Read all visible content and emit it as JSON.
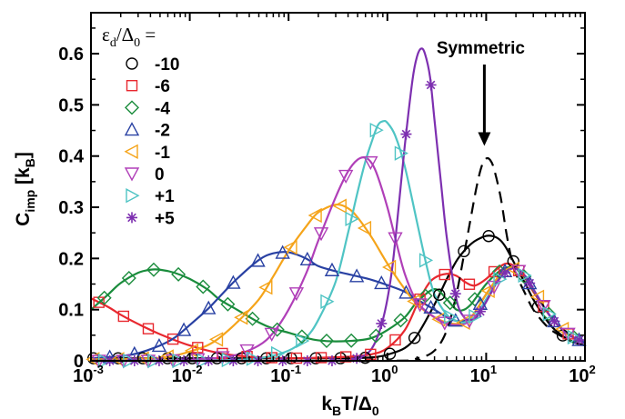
{
  "chart_data": {
    "type": "line",
    "xscale": "log",
    "xlim": [
      0.001,
      100
    ],
    "ylim": [
      0,
      0.68
    ],
    "xlabel": {
      "main": "k",
      "sub1": "B",
      "mid": "T/Δ",
      "sub2": "0"
    },
    "ylabel": {
      "main": "C",
      "sub1": "imp",
      "mid": " [k",
      "sub2": "B",
      "end": "]"
    },
    "xticks": [
      {
        "value": 0.001,
        "base": "10",
        "exp": "-3"
      },
      {
        "value": 0.01,
        "base": "10",
        "exp": "-2"
      },
      {
        "value": 0.1,
        "base": "10",
        "exp": "-1"
      },
      {
        "value": 1,
        "base": "10",
        "exp": "0"
      },
      {
        "value": 10,
        "base": "10",
        "exp": "1"
      },
      {
        "value": 100,
        "base": "10",
        "exp": "2"
      }
    ],
    "yticks": [
      {
        "value": 0,
        "label": "0"
      },
      {
        "value": 0.1,
        "label": "0.1"
      },
      {
        "value": 0.2,
        "label": "0.2"
      },
      {
        "value": 0.3,
        "label": "0.3"
      },
      {
        "value": 0.4,
        "label": "0.4"
      },
      {
        "value": 0.5,
        "label": "0.5"
      },
      {
        "value": 0.6,
        "label": "0.6"
      }
    ],
    "legend_title": {
      "eps": "ε",
      "sub1": "d",
      "mid": "/Δ",
      "sub2": "0",
      "end": " ="
    },
    "legend_position": "top-left",
    "series": [
      {
        "name": "-10",
        "color": "#000000",
        "marker": "circle",
        "x": [
          0.001,
          0.0017,
          0.003,
          0.006,
          0.01,
          0.02,
          0.05,
          0.1,
          0.3,
          0.6,
          0.8,
          1.0,
          1.5,
          2.0,
          3.0,
          4.0,
          5.0,
          6.0,
          7.0,
          8.0,
          10.0,
          12.0,
          14.0,
          16.0,
          20.0,
          25.0,
          30.0,
          40.0,
          50.0,
          70.0,
          100.0
        ],
        "y": [
          0.005,
          0.005,
          0.005,
          0.005,
          0.005,
          0.005,
          0.005,
          0.005,
          0.005,
          0.006,
          0.008,
          0.012,
          0.025,
          0.05,
          0.11,
          0.16,
          0.195,
          0.215,
          0.228,
          0.236,
          0.244,
          0.243,
          0.235,
          0.22,
          0.185,
          0.15,
          0.12,
          0.082,
          0.06,
          0.04,
          0.03
        ]
      },
      {
        "name": "-6",
        "color": "#e8282f",
        "marker": "square",
        "x": [
          0.001,
          0.0015,
          0.002,
          0.003,
          0.005,
          0.01,
          0.02,
          0.04,
          0.07,
          0.1,
          0.2,
          0.4,
          0.7,
          1.0,
          1.5,
          2.0,
          2.5,
          3.0,
          4.0,
          5.0,
          6.0,
          7.0,
          8.0,
          10.0,
          13.0,
          16.0,
          20.0,
          25.0,
          30.0,
          40.0,
          50.0,
          70.0,
          100.0
        ],
        "y": [
          0.122,
          0.105,
          0.09,
          0.072,
          0.052,
          0.03,
          0.015,
          0.008,
          0.006,
          0.005,
          0.006,
          0.008,
          0.013,
          0.025,
          0.06,
          0.11,
          0.145,
          0.162,
          0.17,
          0.166,
          0.155,
          0.148,
          0.148,
          0.16,
          0.18,
          0.19,
          0.183,
          0.16,
          0.135,
          0.1,
          0.075,
          0.05,
          0.035
        ]
      },
      {
        "name": "-4",
        "color": "#1a8c3c",
        "marker": "diamond",
        "x": [
          0.001,
          0.0015,
          0.002,
          0.003,
          0.004,
          0.005,
          0.007,
          0.01,
          0.015,
          0.02,
          0.03,
          0.05,
          0.07,
          0.1,
          0.15,
          0.2,
          0.3,
          0.5,
          0.7,
          1.0,
          1.5,
          2.0,
          3.0,
          4.0,
          5.0,
          6.0,
          7.0,
          8.0,
          10.0,
          13.0,
          16.0,
          20.0,
          25.0,
          30.0,
          40.0,
          50.0,
          70.0,
          100.0
        ],
        "y": [
          0.1,
          0.13,
          0.152,
          0.172,
          0.178,
          0.178,
          0.172,
          0.16,
          0.14,
          0.12,
          0.1,
          0.075,
          0.063,
          0.055,
          0.045,
          0.04,
          0.038,
          0.04,
          0.045,
          0.06,
          0.085,
          0.115,
          0.14,
          0.12,
          0.1,
          0.1,
          0.11,
          0.125,
          0.15,
          0.172,
          0.182,
          0.18,
          0.162,
          0.138,
          0.1,
          0.075,
          0.05,
          0.035
        ]
      },
      {
        "name": "-2",
        "color": "#2941a3",
        "marker": "triangle-up",
        "x": [
          0.001,
          0.0015,
          0.002,
          0.003,
          0.005,
          0.007,
          0.01,
          0.015,
          0.02,
          0.03,
          0.05,
          0.07,
          0.1,
          0.15,
          0.2,
          0.3,
          0.5,
          0.7,
          1.0,
          1.5,
          2.0,
          3.0,
          4.0,
          5.0,
          6.0,
          7.0,
          8.0,
          10.0,
          13.0,
          16.0,
          20.0,
          25.0,
          30.0,
          40.0,
          50.0,
          70.0,
          100.0
        ],
        "y": [
          0.005,
          0.007,
          0.009,
          0.015,
          0.03,
          0.045,
          0.07,
          0.1,
          0.125,
          0.16,
          0.197,
          0.21,
          0.212,
          0.2,
          0.185,
          0.175,
          0.165,
          0.158,
          0.148,
          0.135,
          0.12,
          0.1,
          0.085,
          0.078,
          0.078,
          0.085,
          0.1,
          0.13,
          0.16,
          0.178,
          0.18,
          0.165,
          0.14,
          0.1,
          0.075,
          0.05,
          0.035
        ]
      },
      {
        "name": "-1",
        "color": "#f5a41a",
        "marker": "triangle-left",
        "x": [
          0.001,
          0.002,
          0.003,
          0.005,
          0.007,
          0.01,
          0.015,
          0.02,
          0.03,
          0.05,
          0.07,
          0.1,
          0.15,
          0.2,
          0.3,
          0.4,
          0.5,
          0.7,
          1.0,
          1.5,
          2.0,
          3.0,
          4.0,
          5.0,
          6.0,
          7.0,
          8.0,
          10.0,
          13.0,
          16.0,
          20.0,
          25.0,
          30.0,
          40.0,
          50.0,
          70.0,
          100.0
        ],
        "y": [
          0.003,
          0.003,
          0.004,
          0.006,
          0.01,
          0.018,
          0.03,
          0.045,
          0.075,
          0.12,
          0.165,
          0.215,
          0.262,
          0.29,
          0.305,
          0.298,
          0.28,
          0.24,
          0.19,
          0.14,
          0.11,
          0.085,
          0.075,
          0.072,
          0.075,
          0.085,
          0.1,
          0.13,
          0.162,
          0.178,
          0.18,
          0.165,
          0.14,
          0.1,
          0.075,
          0.05,
          0.035
        ]
      },
      {
        "name": "0",
        "color": "#b03fb8",
        "marker": "triangle-down",
        "x": [
          0.001,
          0.005,
          0.01,
          0.02,
          0.03,
          0.05,
          0.07,
          0.1,
          0.15,
          0.2,
          0.3,
          0.4,
          0.5,
          0.6,
          0.7,
          0.8,
          1.0,
          1.2,
          1.5,
          2.0,
          3.0,
          4.0,
          5.0,
          6.0,
          7.0,
          8.0,
          10.0,
          13.0,
          16.0,
          20.0,
          25.0,
          30.0,
          40.0,
          50.0,
          70.0,
          100.0
        ],
        "y": [
          0.0,
          0.0,
          0.002,
          0.006,
          0.012,
          0.03,
          0.055,
          0.1,
          0.17,
          0.235,
          0.32,
          0.37,
          0.393,
          0.397,
          0.385,
          0.36,
          0.3,
          0.24,
          0.17,
          0.115,
          0.085,
          0.072,
          0.07,
          0.072,
          0.08,
          0.09,
          0.12,
          0.155,
          0.175,
          0.18,
          0.165,
          0.14,
          0.1,
          0.075,
          0.05,
          0.035
        ]
      },
      {
        "name": "+1",
        "color": "#4fc4c4",
        "marker": "triangle-right",
        "x": [
          0.001,
          0.01,
          0.02,
          0.05,
          0.1,
          0.15,
          0.2,
          0.3,
          0.4,
          0.5,
          0.6,
          0.7,
          0.8,
          0.9,
          1.0,
          1.2,
          1.5,
          2.0,
          2.5,
          3.0,
          4.0,
          5.0,
          6.0,
          7.0,
          8.0,
          10.0,
          13.0,
          16.0,
          20.0,
          25.0,
          30.0,
          40.0,
          50.0,
          70.0,
          100.0
        ],
        "y": [
          0.0,
          0.0,
          0.001,
          0.005,
          0.02,
          0.045,
          0.08,
          0.155,
          0.25,
          0.33,
          0.39,
          0.43,
          0.46,
          0.468,
          0.465,
          0.44,
          0.38,
          0.27,
          0.185,
          0.13,
          0.09,
          0.078,
          0.075,
          0.08,
          0.09,
          0.12,
          0.155,
          0.175,
          0.18,
          0.165,
          0.14,
          0.1,
          0.075,
          0.05,
          0.035
        ]
      },
      {
        "name": "+5",
        "color": "#7d2fb0",
        "marker": "star",
        "x": [
          0.001,
          0.1,
          0.3,
          0.5,
          0.7,
          0.9,
          1.1,
          1.3,
          1.5,
          1.8,
          2.0,
          2.2,
          2.4,
          2.7,
          3.0,
          3.5,
          4.0,
          5.0,
          6.0,
          7.0,
          8.0,
          10.0,
          13.0,
          16.0,
          20.0,
          25.0,
          30.0,
          40.0,
          50.0,
          70.0,
          100.0
        ],
        "y": [
          0.0,
          0.0,
          0.0,
          0.005,
          0.025,
          0.08,
          0.17,
          0.3,
          0.42,
          0.55,
          0.595,
          0.61,
          0.6,
          0.555,
          0.47,
          0.345,
          0.24,
          0.12,
          0.085,
          0.08,
          0.085,
          0.115,
          0.155,
          0.175,
          0.18,
          0.165,
          0.14,
          0.1,
          0.075,
          0.05,
          0.035
        ]
      },
      {
        "name": "Symmetric",
        "color": "#000000",
        "marker": "none",
        "dashed": true,
        "x": [
          0.001,
          1.0,
          2.0,
          3.0,
          4.0,
          5.0,
          6.0,
          7.0,
          8.0,
          9.0,
          10.0,
          11.0,
          12.0,
          14.0,
          16.0,
          18.0,
          20.0,
          25.0,
          30.0,
          40.0,
          50.0,
          70.0,
          100.0
        ],
        "y": [
          0.0,
          0.0,
          0.005,
          0.02,
          0.06,
          0.13,
          0.21,
          0.28,
          0.34,
          0.38,
          0.395,
          0.392,
          0.375,
          0.32,
          0.25,
          0.2,
          0.17,
          0.13,
          0.1,
          0.07,
          0.055,
          0.04,
          0.028
        ]
      }
    ],
    "annotations": [
      {
        "text": "Symmetric",
        "x": 10,
        "y": 0.6,
        "arrow_to_y": 0.42
      }
    ]
  }
}
